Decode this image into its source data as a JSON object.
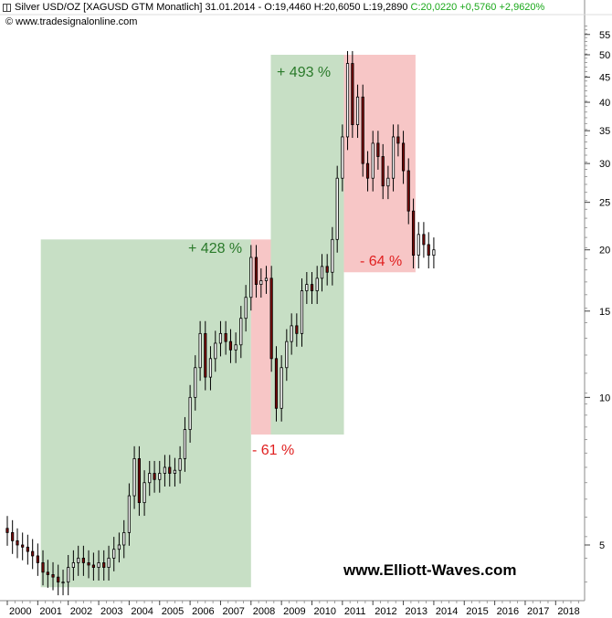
{
  "header": {
    "instrument": "Silver USD/OZ [XAGUSD GTM  Monatlich]",
    "date": "31.01.2014",
    "ohlc": "- O:19,4460 H:20,6050 L:19,2890",
    "change": "C:20,0220 +0,5760 +2,9620%",
    "copyright": "© www.tradesignalonline.com"
  },
  "watermark": "www.Elliott-Waves.com",
  "colors": {
    "up_box": "#c7dfc5",
    "down_box": "#f7c6c6",
    "up_label": "#2a7a2a",
    "down_label": "#e02020",
    "candle": "#000000",
    "candle_down": "#7a0a0a"
  },
  "chart_data": {
    "type": "candlestick",
    "title": "Silver USD/OZ [XAGUSD GTM  Monatlich]",
    "xlabel": "",
    "ylabel": "",
    "y_scale": "log",
    "ylim": [
      4.1,
      58
    ],
    "xlim": [
      2000.0,
      2018.95
    ],
    "x_ticks": [
      "2000",
      "2001",
      "2002",
      "2003",
      "2004",
      "2005",
      "2006",
      "2007",
      "2008",
      "2009",
      "2010",
      "2011",
      "2012",
      "2013",
      "2014",
      "2015",
      "2016",
      "2017",
      "2018"
    ],
    "y_ticks": [
      5,
      10,
      15,
      20,
      25,
      30,
      35,
      40,
      45,
      50,
      55
    ],
    "series": [
      {
        "points": [
          {
            "x": 2000.0,
            "close": 5.3
          },
          {
            "x": 2000.17,
            "close": 5.1
          },
          {
            "x": 2000.33,
            "close": 5.0
          },
          {
            "x": 2000.5,
            "close": 4.95
          },
          {
            "x": 2000.67,
            "close": 4.85
          },
          {
            "x": 2000.83,
            "close": 4.75
          },
          {
            "x": 2001.0,
            "close": 4.6
          },
          {
            "x": 2001.17,
            "close": 4.4
          },
          {
            "x": 2001.33,
            "close": 4.35
          },
          {
            "x": 2001.5,
            "close": 4.3
          },
          {
            "x": 2001.67,
            "close": 4.2
          },
          {
            "x": 2001.83,
            "close": 4.2
          },
          {
            "x": 2002.0,
            "close": 4.5
          },
          {
            "x": 2002.17,
            "close": 4.6
          },
          {
            "x": 2002.33,
            "close": 4.7
          },
          {
            "x": 2002.5,
            "close": 4.6
          },
          {
            "x": 2002.67,
            "close": 4.55
          },
          {
            "x": 2002.83,
            "close": 4.5
          },
          {
            "x": 2003.0,
            "close": 4.6
          },
          {
            "x": 2003.17,
            "close": 4.5
          },
          {
            "x": 2003.33,
            "close": 4.7
          },
          {
            "x": 2003.5,
            "close": 4.9
          },
          {
            "x": 2003.67,
            "close": 5.0
          },
          {
            "x": 2003.83,
            "close": 5.3
          },
          {
            "x": 2004.0,
            "close": 6.3
          },
          {
            "x": 2004.17,
            "close": 7.5
          },
          {
            "x": 2004.33,
            "close": 6.1
          },
          {
            "x": 2004.5,
            "close": 6.7
          },
          {
            "x": 2004.67,
            "close": 7.0
          },
          {
            "x": 2004.83,
            "close": 6.8
          },
          {
            "x": 2005.0,
            "close": 7.0
          },
          {
            "x": 2005.17,
            "close": 7.2
          },
          {
            "x": 2005.33,
            "close": 7.0
          },
          {
            "x": 2005.5,
            "close": 7.1
          },
          {
            "x": 2005.67,
            "close": 7.5
          },
          {
            "x": 2005.83,
            "close": 8.6
          },
          {
            "x": 2006.0,
            "close": 10.0
          },
          {
            "x": 2006.17,
            "close": 11.5
          },
          {
            "x": 2006.33,
            "close": 13.5
          },
          {
            "x": 2006.5,
            "close": 11.0
          },
          {
            "x": 2006.67,
            "close": 12.0
          },
          {
            "x": 2006.83,
            "close": 12.9
          },
          {
            "x": 2007.0,
            "close": 13.5
          },
          {
            "x": 2007.17,
            "close": 13.0
          },
          {
            "x": 2007.33,
            "close": 12.5
          },
          {
            "x": 2007.5,
            "close": 12.8
          },
          {
            "x": 2007.67,
            "close": 14.5
          },
          {
            "x": 2007.83,
            "close": 16.0
          },
          {
            "x": 2008.0,
            "close": 19.3
          },
          {
            "x": 2008.17,
            "close": 17.0
          },
          {
            "x": 2008.33,
            "close": 17.3
          },
          {
            "x": 2008.5,
            "close": 17.5
          },
          {
            "x": 2008.67,
            "close": 12.0
          },
          {
            "x": 2008.83,
            "close": 9.5
          },
          {
            "x": 2009.0,
            "close": 11.5
          },
          {
            "x": 2009.17,
            "close": 13.0
          },
          {
            "x": 2009.33,
            "close": 14.0
          },
          {
            "x": 2009.5,
            "close": 13.5
          },
          {
            "x": 2009.67,
            "close": 16.5
          },
          {
            "x": 2009.83,
            "close": 17.0
          },
          {
            "x": 2010.0,
            "close": 16.5
          },
          {
            "x": 2010.17,
            "close": 17.5
          },
          {
            "x": 2010.33,
            "close": 18.5
          },
          {
            "x": 2010.5,
            "close": 18.0
          },
          {
            "x": 2010.67,
            "close": 21.0
          },
          {
            "x": 2010.83,
            "close": 28.0
          },
          {
            "x": 2011.0,
            "close": 34.0
          },
          {
            "x": 2011.17,
            "close": 48.0
          },
          {
            "x": 2011.33,
            "close": 36.0
          },
          {
            "x": 2011.5,
            "close": 41.0
          },
          {
            "x": 2011.67,
            "close": 30.0
          },
          {
            "x": 2011.83,
            "close": 28.0
          },
          {
            "x": 2012.0,
            "close": 33.0
          },
          {
            "x": 2012.17,
            "close": 31.0
          },
          {
            "x": 2012.33,
            "close": 27.0
          },
          {
            "x": 2012.5,
            "close": 28.0
          },
          {
            "x": 2012.67,
            "close": 34.0
          },
          {
            "x": 2012.83,
            "close": 33.0
          },
          {
            "x": 2013.0,
            "close": 29.0
          },
          {
            "x": 2013.17,
            "close": 24.0
          },
          {
            "x": 2013.33,
            "close": 19.5
          },
          {
            "x": 2013.5,
            "close": 21.5
          },
          {
            "x": 2013.67,
            "close": 20.5
          },
          {
            "x": 2013.83,
            "close": 19.5
          },
          {
            "x": 2014.0,
            "close": 20.0
          }
        ]
      }
    ],
    "annotations": [
      {
        "label": "+ 428 %",
        "kind": "up",
        "x_start": 2001.1,
        "x_end": 2008.0,
        "y_low": 4.1,
        "y_high": 21.0
      },
      {
        "label": "- 61 %",
        "kind": "down",
        "x_start": 2008.0,
        "x_end": 2008.65,
        "y_low": 8.4,
        "y_high": 21.0
      },
      {
        "label": "+ 493 %",
        "kind": "up",
        "x_start": 2008.65,
        "x_end": 2011.05,
        "y_low": 8.4,
        "y_high": 50.0
      },
      {
        "label": "- 64 %",
        "kind": "down",
        "x_start": 2011.05,
        "x_end": 2013.4,
        "y_low": 18.0,
        "y_high": 50.0
      }
    ],
    "grid": false,
    "legend": "none"
  }
}
